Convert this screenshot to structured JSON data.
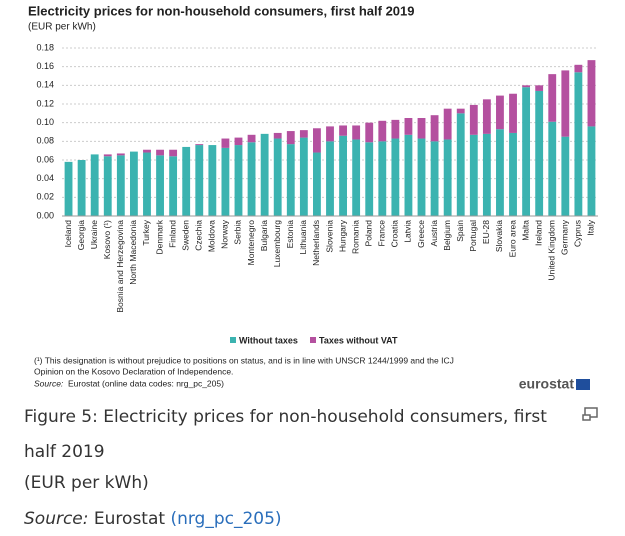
{
  "chart_data": {
    "type": "stacked-bar",
    "title": "Electricity prices for non-household consumers, first half 2019",
    "subtitle": "(EUR per kWh)",
    "categories": [
      "Iceland",
      "Georgia",
      "Ukraine",
      "Kosovo (¹)",
      "Bosnia and Herzegovina",
      "North Macedonia",
      "Turkey",
      "Denmark",
      "Finland",
      "Sweden",
      "Czechia",
      "Moldova",
      "Norway",
      "Serbia",
      "Montenegro",
      "Bulgaria",
      "Luxembourg",
      "Estonia",
      "Lithuania",
      "Netherlands",
      "Slovenia",
      "Hungary",
      "Romania",
      "Poland",
      "France",
      "Croatia",
      "Latvia",
      "Greece",
      "Austria",
      "Belgium",
      "Spain",
      "Portugal",
      "EU-28",
      "Slovakia",
      "Euro area",
      "Malta",
      "Ireland",
      "United Kingdom",
      "Germany",
      "Cyprus",
      "Italy"
    ],
    "series": [
      {
        "name": "Without taxes",
        "color": "#3bb3b0",
        "values": [
          0.058,
          0.06,
          0.066,
          0.064,
          0.065,
          0.069,
          0.068,
          0.065,
          0.064,
          0.074,
          0.076,
          0.076,
          0.073,
          0.076,
          0.079,
          0.088,
          0.083,
          0.077,
          0.084,
          0.068,
          0.08,
          0.086,
          0.082,
          0.079,
          0.08,
          0.083,
          0.087,
          0.083,
          0.08,
          0.082,
          0.11,
          0.087,
          0.088,
          0.093,
          0.089,
          0.138,
          0.134,
          0.101,
          0.085,
          0.154,
          0.096
        ]
      },
      {
        "name": "Taxes without VAT",
        "color": "#b4509f",
        "values": [
          0,
          0,
          0,
          0.002,
          0.002,
          0,
          0.003,
          0.006,
          0.007,
          0,
          0.001,
          0,
          0.01,
          0.008,
          0.008,
          0,
          0.006,
          0.014,
          0.008,
          0.026,
          0.016,
          0.011,
          0.015,
          0.021,
          0.022,
          0.02,
          0.018,
          0.022,
          0.028,
          0.033,
          0.005,
          0.032,
          0.037,
          0.036,
          0.042,
          0.002,
          0.006,
          0.051,
          0.071,
          0.008,
          0.071
        ]
      }
    ],
    "ylim": [
      0,
      0.18
    ],
    "yticks": [
      {
        "value": 0,
        "label": "0.00"
      },
      {
        "value": 0.02,
        "label": "0.02"
      },
      {
        "value": 0.04,
        "label": "0.04"
      },
      {
        "value": 0.06,
        "label": "0.06"
      },
      {
        "value": 0.08,
        "label": "0.08"
      },
      {
        "value": 0.1,
        "label": "0.10"
      },
      {
        "value": 0.12,
        "label": "0.12"
      },
      {
        "value": 0.14,
        "label": "0.14"
      },
      {
        "value": 0.16,
        "label": "0.16"
      },
      {
        "value": 0.18,
        "label": "0.18"
      }
    ],
    "grid": true,
    "legend": "bottom"
  },
  "footnote": [
    "(¹) This designation is without  prejudice to positions on status, and is in line with UNSCR 1244/1999 and the ICJ",
    "Opinion on the Kosovo Declaration of Independence."
  ],
  "source": {
    "prefix": "Source:",
    "text": "Eurostat (online data codes: nrg_pc_205)"
  },
  "logo": "eurostat",
  "caption": {
    "title": "Figure 5: Electricity prices for non-household consumers, first half 2019",
    "unit": "(EUR per kWh)",
    "source_prefix": "Source:",
    "source_name": "Eurostat",
    "source_link": "(nrg_pc_205)"
  }
}
